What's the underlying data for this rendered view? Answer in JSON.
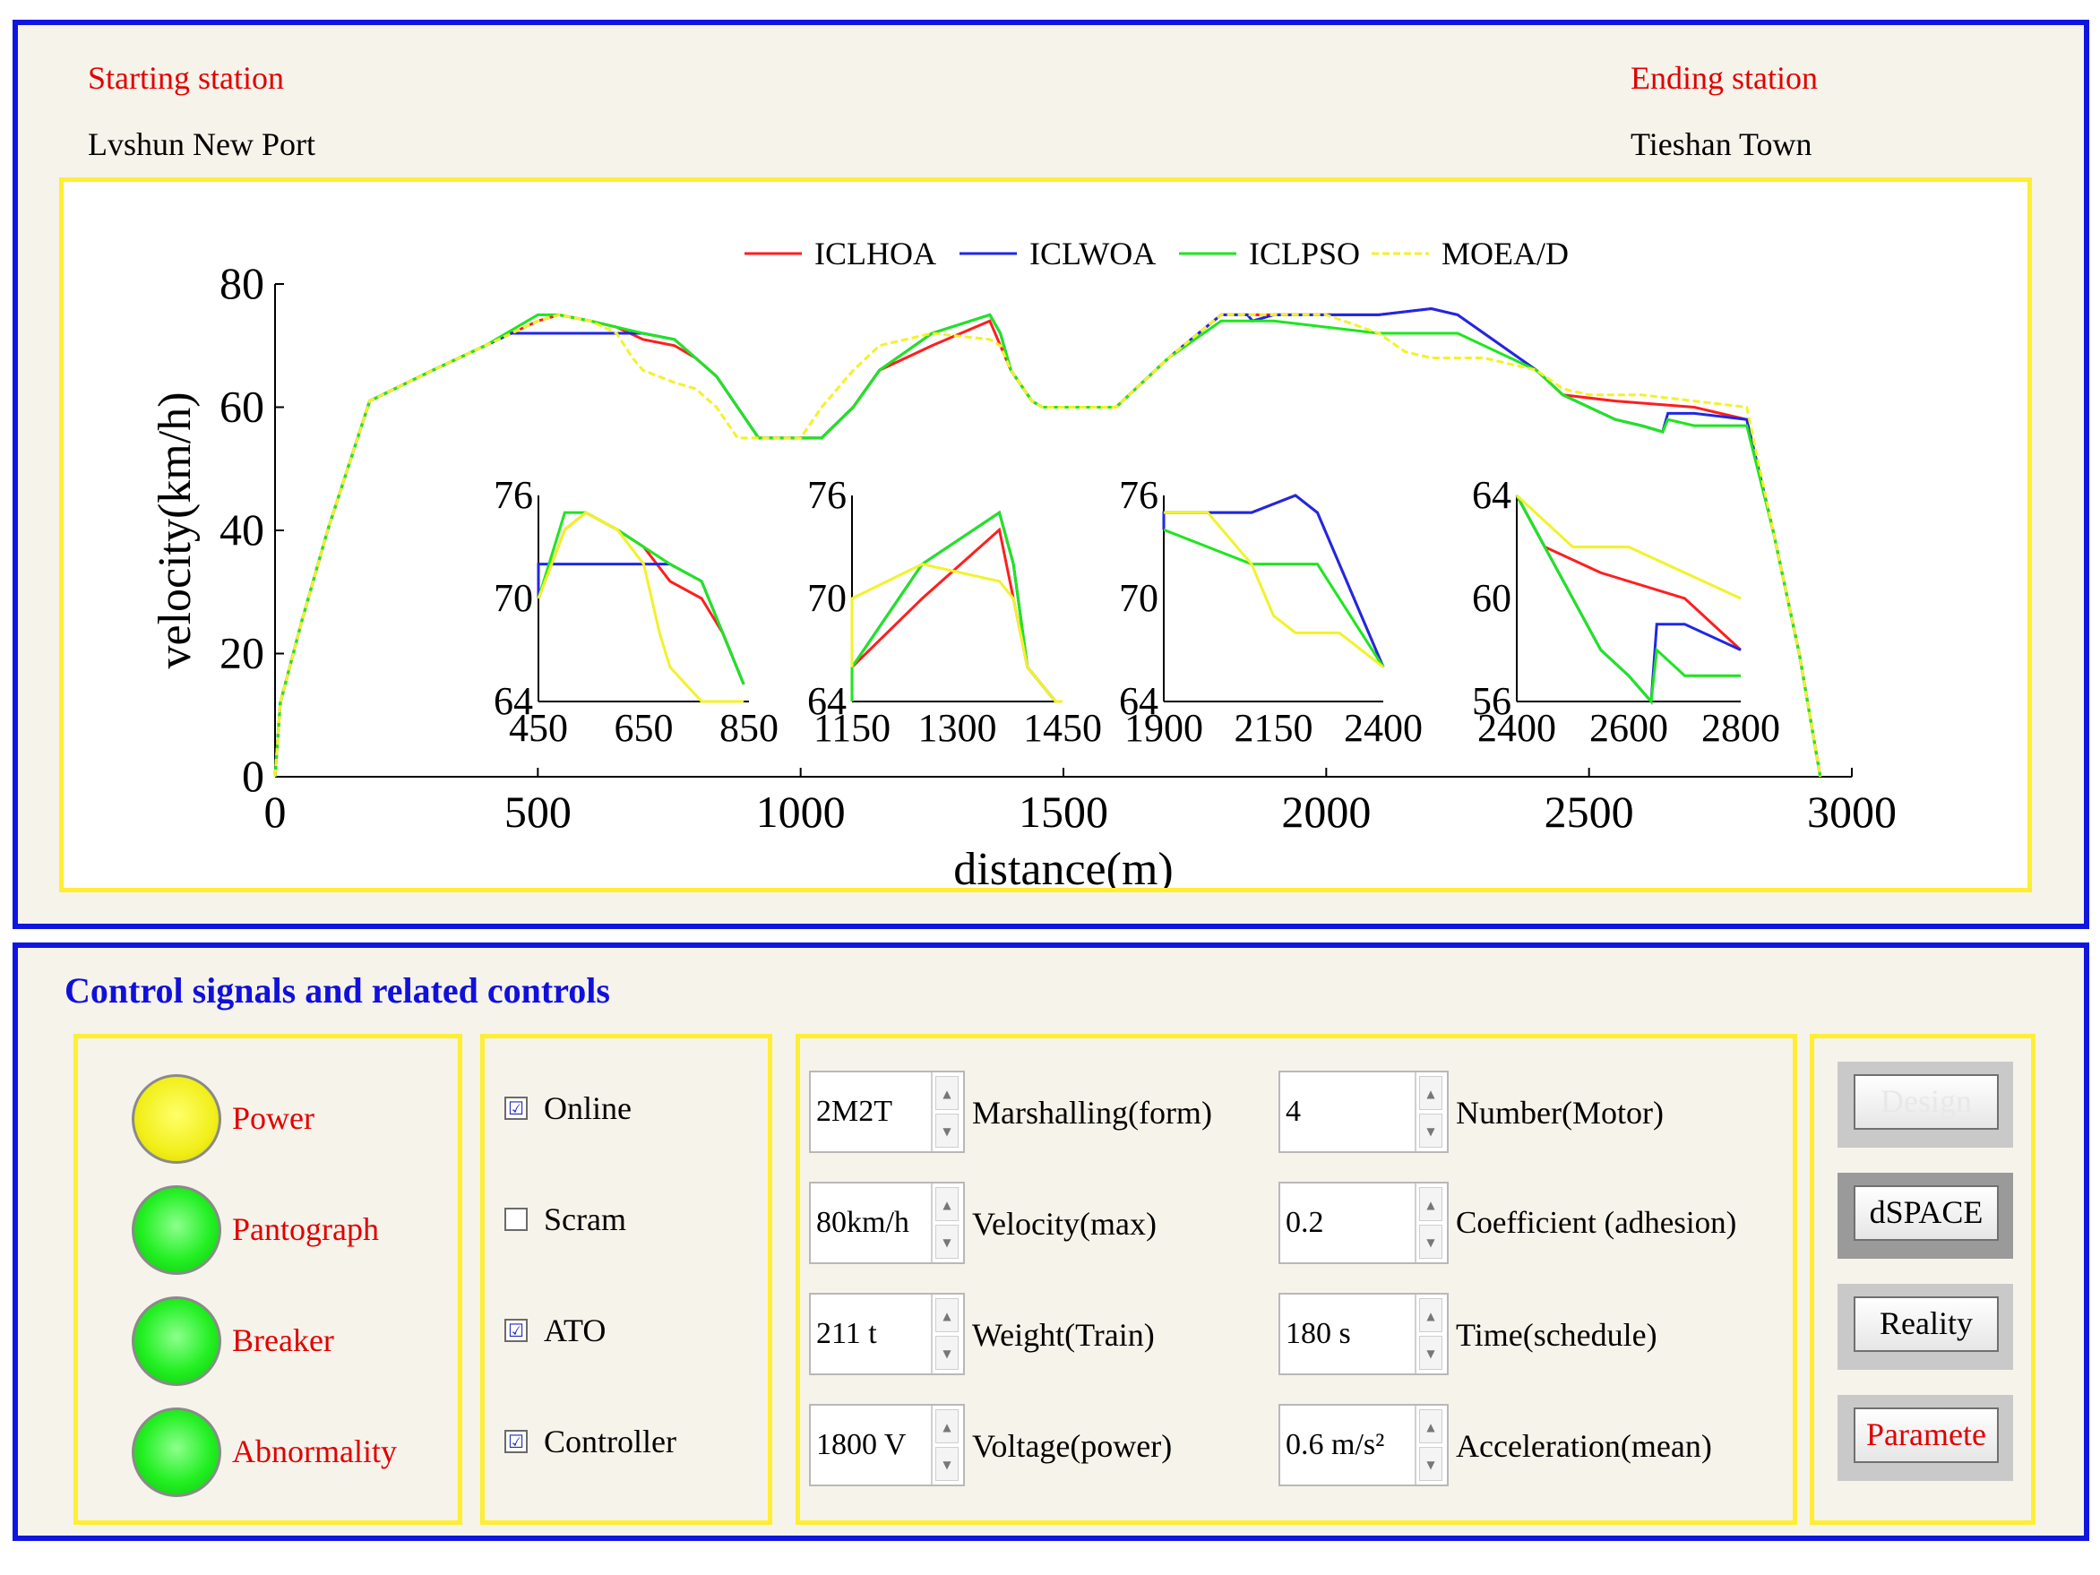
{
  "stations": {
    "start_label": "Starting station",
    "start_name": "Lvshun New Port",
    "end_label": "Ending station",
    "end_name": "Tieshan Town"
  },
  "colors": {
    "ICLHOA": "#ff1e1e",
    "ICLWOA": "#1e28e6",
    "ICLPSO": "#1ee61e",
    "MOEA/D": "#f2f22a",
    "frame": "#1016e0",
    "box": "#ffee33"
  },
  "chart_data": {
    "type": "line",
    "xlabel": "distance(m)",
    "ylabel": "velocity(km/h)",
    "xlim": [
      0,
      3000
    ],
    "ylim": [
      0,
      80
    ],
    "xticks": [
      "0",
      "500",
      "1000",
      "1500",
      "2000",
      "2500",
      "3000"
    ],
    "yticks": [
      "0",
      "20",
      "40",
      "60",
      "80"
    ],
    "legend": [
      "ICLHOA",
      "ICLWOA",
      "ICLPSO",
      "MOEA/D"
    ],
    "legend_position": "top",
    "series": [
      {
        "name": "ICLHOA",
        "x": [
          0,
          10,
          50,
          100,
          180,
          300,
          400,
          500,
          540,
          600,
          650,
          700,
          760,
          800,
          840,
          880,
          920,
          1000,
          1040,
          1100,
          1150,
          1250,
          1360,
          1380,
          1400,
          1440,
          1460,
          1480,
          1500,
          1560,
          1600,
          1700,
          1800,
          1900,
          2000,
          2100,
          2200,
          2250,
          2400,
          2450,
          2550,
          2700,
          2800,
          2850,
          2900,
          2940
        ],
        "y": [
          0,
          12,
          25,
          40,
          61,
          66,
          70,
          74,
          75,
          74,
          73,
          71,
          70,
          68,
          65,
          60,
          55,
          55,
          55,
          60,
          66,
          70,
          74,
          70,
          66,
          61,
          60,
          60,
          60,
          60,
          60,
          68,
          75,
          75,
          75,
          75,
          76,
          75,
          66,
          62,
          61,
          60,
          58,
          40,
          20,
          0
        ]
      },
      {
        "name": "ICLWOA",
        "x": [
          0,
          10,
          50,
          100,
          180,
          300,
          400,
          450,
          500,
          550,
          600,
          650,
          700,
          760,
          800,
          840,
          880,
          920,
          1000,
          1040,
          1100,
          1150,
          1250,
          1360,
          1380,
          1400,
          1440,
          1460,
          1500,
          1560,
          1600,
          1700,
          1800,
          1850,
          1860,
          1900,
          2000,
          2100,
          2200,
          2250,
          2400,
          2450,
          2500,
          2550,
          2600,
          2640,
          2650,
          2700,
          2800,
          2850,
          2900,
          2940
        ],
        "y": [
          0,
          12,
          25,
          40,
          61,
          66,
          70,
          72,
          72,
          72,
          72,
          72,
          72,
          71,
          68,
          65,
          60,
          55,
          55,
          55,
          60,
          66,
          72,
          75,
          72,
          66,
          61,
          60,
          60,
          60,
          60,
          68,
          75,
          75,
          74,
          75,
          75,
          75,
          76,
          75,
          66,
          62,
          60,
          58,
          57,
          56,
          59,
          59,
          58,
          40,
          20,
          0
        ]
      },
      {
        "name": "ICLPSO",
        "x": [
          0,
          10,
          50,
          100,
          180,
          300,
          400,
          500,
          540,
          600,
          650,
          700,
          760,
          800,
          840,
          880,
          920,
          1000,
          1040,
          1100,
          1150,
          1250,
          1360,
          1380,
          1400,
          1440,
          1460,
          1500,
          1560,
          1600,
          1700,
          1800,
          1900,
          2000,
          2100,
          2200,
          2250,
          2400,
          2450,
          2500,
          2550,
          2600,
          2640,
          2650,
          2700,
          2800,
          2850,
          2900,
          2940
        ],
        "y": [
          0,
          12,
          25,
          40,
          61,
          66,
          70,
          75,
          75,
          74,
          73,
          72,
          71,
          68,
          65,
          60,
          55,
          55,
          55,
          60,
          66,
          72,
          75,
          72,
          66,
          61,
          60,
          60,
          60,
          60,
          68,
          74,
          74,
          73,
          72,
          72,
          72,
          66,
          62,
          60,
          58,
          57,
          56,
          58,
          57,
          57,
          40,
          20,
          0
        ]
      },
      {
        "name": "MOEA/D",
        "x": [
          0,
          10,
          50,
          100,
          180,
          300,
          400,
          500,
          540,
          600,
          650,
          680,
          700,
          760,
          800,
          840,
          880,
          920,
          1000,
          1040,
          1100,
          1150,
          1250,
          1360,
          1380,
          1400,
          1440,
          1460,
          1500,
          1560,
          1600,
          1700,
          1800,
          1900,
          2000,
          2100,
          2150,
          2200,
          2250,
          2300,
          2400,
          2450,
          2500,
          2550,
          2600,
          2700,
          2800,
          2850,
          2900,
          2940
        ],
        "y": [
          0,
          12,
          25,
          40,
          61,
          66,
          70,
          74,
          75,
          74,
          72,
          68,
          66,
          64,
          63,
          60,
          55,
          55,
          55,
          60,
          66,
          70,
          72,
          71,
          70,
          66,
          61,
          60,
          60,
          60,
          60,
          68,
          75,
          75,
          75,
          72,
          69,
          68,
          68,
          68,
          66,
          63,
          62,
          62,
          62,
          61,
          60,
          40,
          20,
          0
        ]
      }
    ],
    "insets": [
      {
        "xticks": [
          "450",
          "650",
          "850"
        ],
        "yticks": [
          "64",
          "70",
          "76"
        ]
      },
      {
        "xticks": [
          "1150",
          "1300",
          "1450"
        ],
        "yticks": [
          "64",
          "70",
          "76"
        ]
      },
      {
        "xticks": [
          "1900",
          "2150",
          "2400"
        ],
        "yticks": [
          "64",
          "70",
          "76"
        ]
      },
      {
        "xticks": [
          "2400",
          "2600",
          "2800"
        ],
        "yticks": [
          "56",
          "60",
          "64"
        ]
      }
    ]
  },
  "controls": {
    "title": "Control signals and related controls",
    "lamps": [
      {
        "label": "Power",
        "state": "yellow"
      },
      {
        "label": "Pantograph",
        "state": "green"
      },
      {
        "label": "Breaker",
        "state": "green"
      },
      {
        "label": "Abnormality",
        "state": "green"
      }
    ],
    "checkboxes": [
      {
        "label": "Online",
        "checked": "☑"
      },
      {
        "label": "Scram",
        "checked": ""
      },
      {
        "label": "ATO",
        "checked": "☑"
      },
      {
        "label": "Controller",
        "checked": "☑"
      }
    ],
    "params_left": [
      {
        "value": "2M2T",
        "label": "Marshalling(form)"
      },
      {
        "value": "80km/h",
        "label": "Velocity(max)"
      },
      {
        "value": "211 t",
        "label": "Weight(Train)"
      },
      {
        "value": "1800 V",
        "label": "Voltage(power)"
      }
    ],
    "params_right": [
      {
        "value": "4",
        "label": "Number(Motor)"
      },
      {
        "value": "0.2",
        "label": "Coefficient (adhesion)"
      },
      {
        "value": "180 s",
        "label": "Time(schedule)"
      },
      {
        "value": "0.6 m/s²",
        "label": "Acceleration(mean)"
      }
    ],
    "buttons": [
      {
        "label": "Design",
        "color": "#e8e8e8"
      },
      {
        "label": "dSPACE",
        "color": "#000000"
      },
      {
        "label": "Reality",
        "color": "#000000"
      },
      {
        "label": "Paramete",
        "color": "#e00000"
      }
    ]
  }
}
